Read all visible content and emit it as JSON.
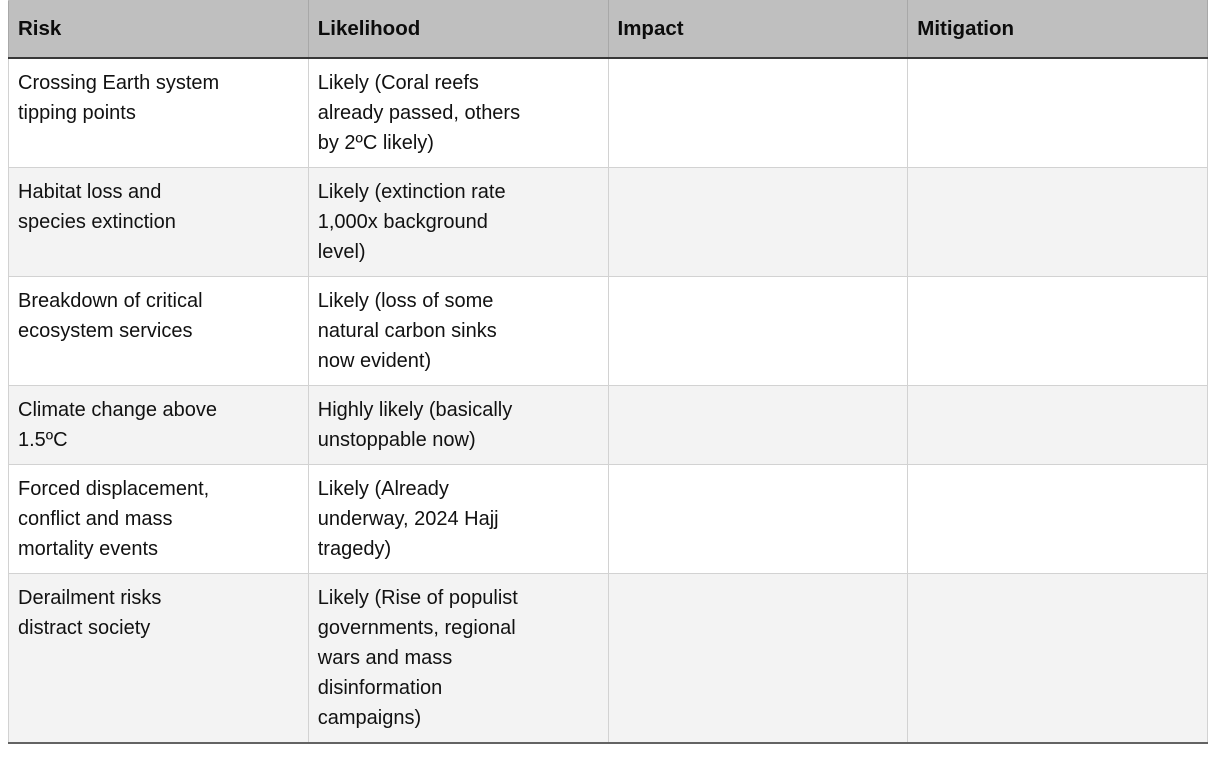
{
  "table": {
    "headers": [
      "Risk",
      "Likelihood",
      "Impact",
      "Mitigation"
    ],
    "rows": [
      {
        "risk": "Crossing Earth system\ntipping points",
        "likelihood": "Likely (Coral reefs\nalready passed, others\nby 2ºC likely)",
        "impact": "",
        "mitigation": ""
      },
      {
        "risk": "Habitat loss and\nspecies extinction",
        "likelihood": "Likely (extinction rate\n1,000x background\nlevel)",
        "impact": "",
        "mitigation": ""
      },
      {
        "risk": "Breakdown of critical\necosystem services",
        "likelihood": "Likely (loss of some\nnatural carbon sinks\nnow evident)",
        "impact": "",
        "mitigation": ""
      },
      {
        "risk": "Climate change above\n1.5ºC",
        "likelihood": "Highly likely (basically\nunstoppable now)",
        "impact": "",
        "mitigation": ""
      },
      {
        "risk": "Forced displacement,\nconflict and mass\nmortality events",
        "likelihood": "Likely (Already\nunderway, 2024 Hajj\ntragedy)",
        "impact": "",
        "mitigation": ""
      },
      {
        "risk": "Derailment risks\ndistract society",
        "likelihood": "Likely (Rise of populist\ngovernments, regional\nwars and mass\ndisinformation\ncampaigns)",
        "impact": "",
        "mitigation": ""
      }
    ]
  },
  "colors": {
    "header_bg": "#bfbfbf",
    "header_divider": "#a8a8a8",
    "header_rule": "#383838",
    "cell_border": "#d2d2d2",
    "row_bg": "#ffffff",
    "stripe_bg": "#f3f3f3",
    "bottom_rule": "#636363"
  }
}
